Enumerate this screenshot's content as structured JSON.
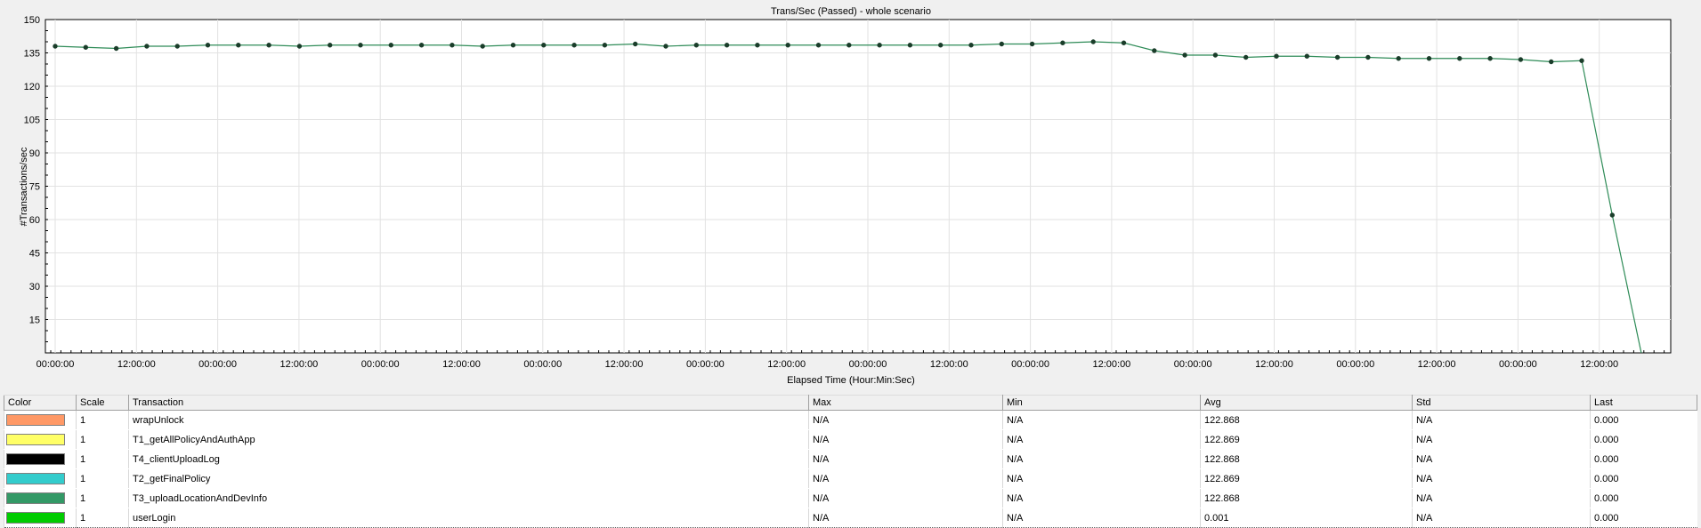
{
  "chart_data": {
    "type": "line",
    "title": "Trans/Sec (Passed) - whole scenario",
    "xlabel": "Elapsed Time (Hour:Min:Sec)",
    "ylabel": "#Transactions/sec",
    "ylim": [
      0,
      150
    ],
    "yticks": [
      15,
      30,
      45,
      60,
      75,
      90,
      105,
      120,
      135,
      150
    ],
    "xtick_labels": [
      "00:00:00",
      "12:00:00",
      "00:00:00",
      "12:00:00",
      "00:00:00",
      "12:00:00",
      "00:00:00",
      "12:00:00",
      "00:00:00",
      "12:00:00",
      "00:00:00",
      "12:00:00",
      "00:00:00",
      "12:00:00",
      "00:00:00",
      "12:00:00",
      "00:00:00",
      "12:00:00",
      "00:00:00",
      "12:00:00"
    ],
    "grid": true,
    "series": [
      {
        "name": "T3_uploadLocationAndDevInfo",
        "color": "#2e8b57",
        "x": [
          0,
          1,
          2,
          3,
          4,
          5,
          6,
          7,
          8,
          9,
          10,
          11,
          12,
          13,
          14,
          15,
          16,
          17,
          18,
          19,
          20,
          21,
          22,
          23,
          24,
          25,
          26,
          27,
          28,
          29,
          30,
          31,
          32,
          33,
          34,
          35,
          36,
          37,
          38,
          39,
          40,
          41,
          42,
          43,
          44,
          45,
          46,
          47,
          48,
          49,
          50,
          51
        ],
        "values": [
          138,
          137.5,
          137,
          138,
          138,
          138.5,
          138.5,
          138.5,
          138,
          138.5,
          138.5,
          138.5,
          138.5,
          138.5,
          138,
          138.5,
          138.5,
          138.5,
          138.5,
          139,
          138,
          138.5,
          138.5,
          138.5,
          138.5,
          138.5,
          138.5,
          138.5,
          138.5,
          138.5,
          138.5,
          139,
          139,
          139.5,
          140,
          139.5,
          136,
          134,
          134,
          133,
          133.5,
          133.5,
          133,
          133,
          132.5,
          132.5,
          132.5,
          132.5,
          132,
          131,
          131.5,
          62
        ]
      }
    ]
  },
  "legend": {
    "headers": [
      "Color",
      "Scale",
      "Transaction",
      "Max",
      "Min",
      "Avg",
      "Std",
      "Last"
    ],
    "rows": [
      {
        "color": "#ff9966",
        "scale": "1",
        "transaction": "wrapUnlock",
        "max": "N/A",
        "min": "N/A",
        "avg": "122.868",
        "std": "N/A",
        "last": "0.000"
      },
      {
        "color": "#ffff66",
        "scale": "1",
        "transaction": "T1_getAllPolicyAndAuthApp",
        "max": "N/A",
        "min": "N/A",
        "avg": "122.869",
        "std": "N/A",
        "last": "0.000"
      },
      {
        "color": "#000000",
        "scale": "1",
        "transaction": "T4_clientUploadLog",
        "max": "N/A",
        "min": "N/A",
        "avg": "122.868",
        "std": "N/A",
        "last": "0.000"
      },
      {
        "color": "#33cccc",
        "scale": "1",
        "transaction": "T2_getFinalPolicy",
        "max": "N/A",
        "min": "N/A",
        "avg": "122.869",
        "std": "N/A",
        "last": "0.000"
      },
      {
        "color": "#339966",
        "scale": "1",
        "transaction": "T3_uploadLocationAndDevInfo",
        "max": "N/A",
        "min": "N/A",
        "avg": "122.868",
        "std": "N/A",
        "last": "0.000"
      },
      {
        "color": "#00cc00",
        "scale": "1",
        "transaction": "userLogin",
        "max": "N/A",
        "min": "N/A",
        "avg": "0.001",
        "std": "N/A",
        "last": "0.000"
      }
    ]
  }
}
